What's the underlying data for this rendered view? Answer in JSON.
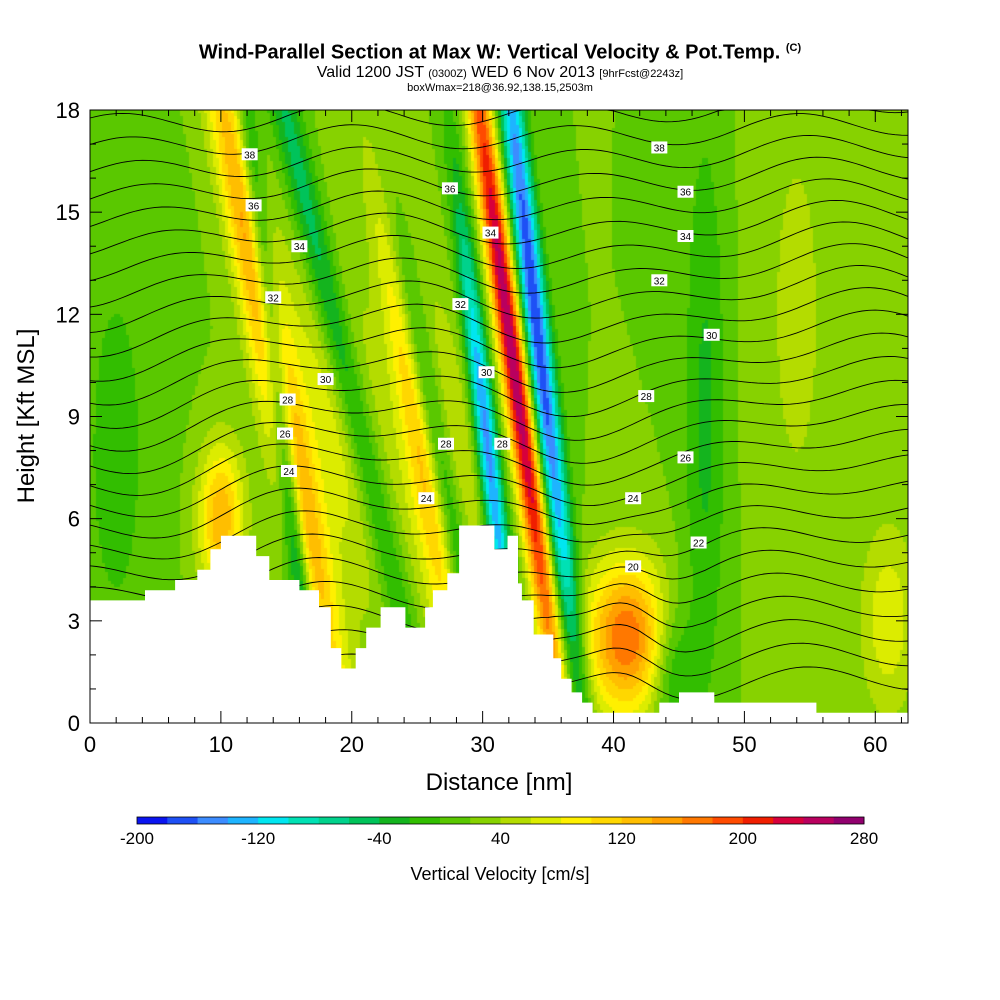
{
  "chart_data": {
    "type": "heatmap",
    "title": {
      "main": "Wind-Parallel Section at Max W: Vertical Velocity & Pot.Temp.",
      "copyright": "(C)",
      "valid_prefix": "Valid 1200 JST",
      "utc": "(0300Z)",
      "date": "WED 6 Nov 2013",
      "fcst": "[9hrFcst@2243z]",
      "box": "boxWmax=218@36.92,138.15,2503m"
    },
    "xlabel": "Distance [nm]",
    "ylabel": "Height [Kft MSL]",
    "xlim": [
      0,
      62.5
    ],
    "ylim": [
      0,
      18
    ],
    "x_ticks": [
      "0",
      "10",
      "20",
      "30",
      "40",
      "50",
      "60"
    ],
    "y_ticks": [
      "0",
      "3",
      "6",
      "9",
      "12",
      "15",
      "18"
    ],
    "colorbar": {
      "label": "Vertical Velocity [cm/s]",
      "tick_labels": [
        "-200",
        "-120",
        "-40",
        "40",
        "120",
        "200",
        "280"
      ],
      "levels": [
        -200,
        -180,
        -160,
        -140,
        -120,
        -100,
        -80,
        -60,
        -40,
        -20,
        0,
        20,
        40,
        60,
        80,
        100,
        120,
        140,
        160,
        180,
        200,
        220,
        240,
        260,
        280
      ],
      "colors": [
        "#0a14f0",
        "#1e50f5",
        "#3c8cff",
        "#1eb4ff",
        "#00e6f0",
        "#00e1b4",
        "#00d28c",
        "#00c35a",
        "#14b41e",
        "#32be00",
        "#5ac800",
        "#87d200",
        "#b4dc00",
        "#dcec00",
        "#fff000",
        "#ffd700",
        "#ffbe00",
        "#ffa000",
        "#ff7800",
        "#ff4b00",
        "#f01e00",
        "#d7003c",
        "#b9005f",
        "#91006e",
        "#64007d"
      ]
    },
    "terrain": [
      [
        0,
        3.6
      ],
      [
        4.2,
        3.6
      ],
      [
        4.2,
        3.9
      ],
      [
        6.5,
        3.9
      ],
      [
        6.5,
        4.2
      ],
      [
        8.2,
        4.2
      ],
      [
        8.2,
        4.5
      ],
      [
        9.2,
        4.5
      ],
      [
        9.2,
        5.1
      ],
      [
        10,
        5.1
      ],
      [
        10,
        5.5
      ],
      [
        12.7,
        5.5
      ],
      [
        12.7,
        4.9
      ],
      [
        13.7,
        4.9
      ],
      [
        13.7,
        4.2
      ],
      [
        16,
        4.2
      ],
      [
        16,
        3.9
      ],
      [
        17.5,
        3.9
      ],
      [
        17.5,
        3.4
      ],
      [
        18.4,
        3.4
      ],
      [
        18.4,
        2.2
      ],
      [
        19.2,
        2.2
      ],
      [
        19.2,
        1.6
      ],
      [
        20.3,
        1.6
      ],
      [
        20.3,
        2.2
      ],
      [
        21.1,
        2.2
      ],
      [
        21.1,
        2.8
      ],
      [
        22.2,
        2.8
      ],
      [
        22.2,
        3.4
      ],
      [
        24.1,
        3.4
      ],
      [
        24.1,
        2.8
      ],
      [
        25.6,
        2.8
      ],
      [
        25.6,
        3.4
      ],
      [
        26.2,
        3.4
      ],
      [
        26.2,
        3.9
      ],
      [
        27.3,
        3.9
      ],
      [
        27.3,
        4.4
      ],
      [
        28.2,
        4.4
      ],
      [
        28.2,
        5.8
      ],
      [
        30.9,
        5.8
      ],
      [
        30.9,
        5.1
      ],
      [
        31.9,
        5.1
      ],
      [
        31.9,
        5.5
      ],
      [
        32.7,
        5.5
      ],
      [
        32.7,
        4.1
      ],
      [
        33,
        4.1
      ],
      [
        33,
        3.6
      ],
      [
        33.9,
        3.6
      ],
      [
        33.9,
        2.6
      ],
      [
        35.4,
        2.6
      ],
      [
        35.4,
        1.9
      ],
      [
        36,
        1.9
      ],
      [
        36,
        1.3
      ],
      [
        36.8,
        1.3
      ],
      [
        36.8,
        0.9
      ],
      [
        37.6,
        0.9
      ],
      [
        37.6,
        0.6
      ],
      [
        38.4,
        0.6
      ],
      [
        38.4,
        0.3
      ],
      [
        43.5,
        0.3
      ],
      [
        43.5,
        0.6
      ],
      [
        45,
        0.6
      ],
      [
        45,
        0.9
      ],
      [
        47.7,
        0.9
      ],
      [
        47.7,
        0.6
      ],
      [
        55.5,
        0.6
      ],
      [
        55.5,
        0.3
      ],
      [
        62.5,
        0.3
      ],
      [
        62.5,
        0
      ],
      [
        0,
        0
      ]
    ],
    "wv_features": [
      {
        "x": 13.8,
        "y": 11,
        "sx": 1.1,
        "sy": 8,
        "tilt": -0.5,
        "amp": 150
      },
      {
        "x": 14.6,
        "y": 9,
        "sx": 0.6,
        "sy": 7,
        "tilt": -0.3,
        "amp": -140
      },
      {
        "x": 18.5,
        "y": 12,
        "sx": 0.9,
        "sy": 8,
        "tilt": -0.6,
        "amp": -90
      },
      {
        "x": 19,
        "y": 9,
        "sx": 2.5,
        "sy": 4,
        "tilt": -0.4,
        "amp": 55
      },
      {
        "x": 23.5,
        "y": 13,
        "sx": 0.9,
        "sy": 7,
        "tilt": -0.4,
        "amp": 110
      },
      {
        "x": 25.5,
        "y": 10,
        "sx": 0.8,
        "sy": 8,
        "tilt": -0.5,
        "amp": -120
      },
      {
        "x": 27,
        "y": 7,
        "sx": 2.2,
        "sy": 4,
        "tilt": -0.3,
        "amp": 60
      },
      {
        "x": 32.2,
        "y": 11,
        "sx": 0.7,
        "sy": 8,
        "tilt": -0.35,
        "amp": 240
      },
      {
        "x": 30.4,
        "y": 8,
        "sx": 0.6,
        "sy": 5,
        "tilt": -0.3,
        "amp": -180
      },
      {
        "x": 34,
        "y": 12,
        "sx": 0.7,
        "sy": 8,
        "tilt": -0.3,
        "amp": -200
      },
      {
        "x": 10,
        "y": 6,
        "sx": 1.2,
        "sy": 1.5,
        "tilt": 0,
        "amp": 120
      },
      {
        "x": 41,
        "y": 2.5,
        "sx": 2.2,
        "sy": 1.6,
        "tilt": 0,
        "amp": 160
      },
      {
        "x": 44.5,
        "y": 1.5,
        "sx": 1.2,
        "sy": 1.5,
        "tilt": 0,
        "amp": -60
      },
      {
        "x": 47,
        "y": 9,
        "sx": 1.1,
        "sy": 6,
        "tilt": 0,
        "amp": -45
      },
      {
        "x": 54,
        "y": 12,
        "sx": 2.2,
        "sy": 6,
        "tilt": 0,
        "amp": 25
      },
      {
        "x": 61,
        "y": 3,
        "sx": 1.5,
        "sy": 2,
        "tilt": 0,
        "amp": 55
      },
      {
        "x": 2,
        "y": 8,
        "sx": 2.5,
        "sy": 6,
        "tilt": 0,
        "amp": -25
      }
    ],
    "theta_label_points": [
      {
        "text": "38",
        "x": 12.2,
        "y": 16.7
      },
      {
        "text": "36",
        "x": 12.5,
        "y": 15.2
      },
      {
        "text": "34",
        "x": 16,
        "y": 14
      },
      {
        "text": "32",
        "x": 14,
        "y": 12.5
      },
      {
        "text": "30",
        "x": 18,
        "y": 10.1
      },
      {
        "text": "28",
        "x": 15.1,
        "y": 9.5
      },
      {
        "text": "26",
        "x": 14.9,
        "y": 8.5
      },
      {
        "text": "24",
        "x": 15.2,
        "y": 7.4
      },
      {
        "text": "36",
        "x": 27.5,
        "y": 15.7
      },
      {
        "text": "34",
        "x": 30.6,
        "y": 14.4
      },
      {
        "text": "32",
        "x": 28.3,
        "y": 12.3
      },
      {
        "text": "30",
        "x": 30.3,
        "y": 10.3
      },
      {
        "text": "28",
        "x": 27.2,
        "y": 8.2
      },
      {
        "text": "28",
        "x": 31.5,
        "y": 8.2
      },
      {
        "text": "24",
        "x": 25.7,
        "y": 6.6
      },
      {
        "text": "38",
        "x": 43.5,
        "y": 16.9
      },
      {
        "text": "36",
        "x": 45.5,
        "y": 15.6
      },
      {
        "text": "34",
        "x": 45.5,
        "y": 14.3
      },
      {
        "text": "32",
        "x": 43.5,
        "y": 13
      },
      {
        "text": "30",
        "x": 47.5,
        "y": 11.4
      },
      {
        "text": "28",
        "x": 42.5,
        "y": 9.6
      },
      {
        "text": "26",
        "x": 45.5,
        "y": 7.8
      },
      {
        "text": "24",
        "x": 41.5,
        "y": 6.6
      },
      {
        "text": "22",
        "x": 46.5,
        "y": 5.3
      },
      {
        "text": "20",
        "x": 41.5,
        "y": 4.6
      }
    ]
  }
}
